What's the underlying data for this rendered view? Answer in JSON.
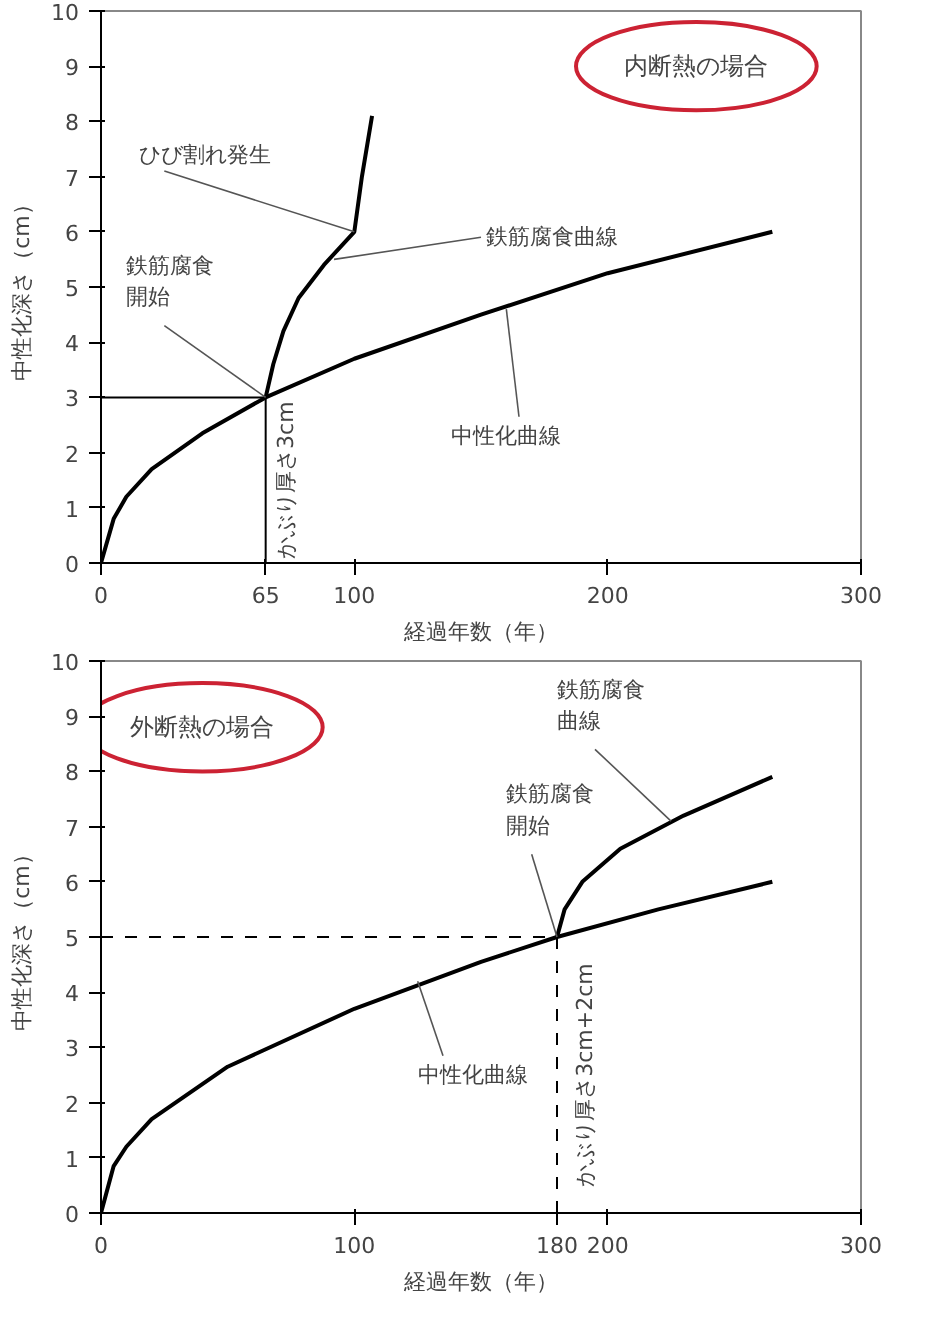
{
  "chart_data": [
    {
      "type": "line",
      "xlabel": "経過年数（年）",
      "ylabel": "中性化深さ（cm）",
      "xlim": [
        0,
        300
      ],
      "ylim": [
        0,
        10
      ],
      "xticks": [
        0,
        65,
        100,
        200,
        300
      ],
      "yticks": [
        0,
        1,
        2,
        3,
        4,
        5,
        6,
        7,
        8,
        9,
        10
      ],
      "grid": false,
      "series": [
        {
          "color": "#000000",
          "x": [
            0,
            5,
            10,
            20,
            40,
            65,
            100,
            150,
            200,
            265
          ],
          "values": [
            0,
            0.8,
            1.2,
            1.7,
            2.35,
            3,
            3.7,
            4.5,
            5.25,
            6
          ]
        },
        {
          "color": "#000000",
          "x": [
            65,
            68,
            72,
            78,
            88,
            100,
            103,
            107
          ],
          "values": [
            3,
            3.6,
            4.2,
            4.8,
            5.4,
            6,
            7,
            8.1
          ]
        }
      ],
      "ref_lines": [
        {
          "axis": "y",
          "value": 3,
          "line_style": "solid"
        },
        {
          "axis": "x",
          "value": 65,
          "line_style": "solid"
        }
      ],
      "annotations": [
        "内断熱の場合",
        {
          "text": "ひび割れ発生",
          "x": 100,
          "y": 6
        },
        {
          "text": "鉄筋腐食曲線",
          "x": 92,
          "y": 5.5
        },
        {
          "text": "鉄筋腐食開始",
          "x": 65,
          "y": 3
        },
        {
          "text": "中性化曲線",
          "x": 160,
          "y": 4.6
        },
        {
          "text": "かぶり厚さ3cm",
          "x": 65,
          "y": 1.5
        }
      ]
    },
    {
      "type": "line",
      "xlabel": "経過年数（年）",
      "ylabel": "中性化深さ（cm）",
      "xlim": [
        0,
        300
      ],
      "ylim": [
        0,
        10
      ],
      "xticks": [
        0,
        100,
        180,
        200,
        300
      ],
      "yticks": [
        0,
        1,
        2,
        3,
        4,
        5,
        6,
        7,
        8,
        9,
        10
      ],
      "grid": false,
      "series": [
        {
          "color": "#000000",
          "x": [
            0,
            5,
            10,
            20,
            50,
            100,
            150,
            180,
            220,
            265
          ],
          "values": [
            0,
            0.85,
            1.2,
            1.7,
            2.65,
            3.7,
            4.55,
            5,
            5.5,
            6
          ]
        },
        {
          "color": "#000000",
          "x": [
            180,
            183,
            190,
            205,
            230,
            265
          ],
          "values": [
            5,
            5.5,
            6,
            6.6,
            7.2,
            7.9
          ]
        }
      ],
      "ref_lines": [
        {
          "axis": "y",
          "value": 5,
          "line_style": "dashed"
        },
        {
          "axis": "x",
          "value": 180,
          "line_style": "dashed"
        }
      ],
      "annotations": [
        "外断熱の場合",
        {
          "text": "鉄筋腐食曲線",
          "x": 225,
          "y": 7.1
        },
        {
          "text": "鉄筋腐食開始",
          "x": 180,
          "y": 5
        },
        {
          "text": "中性化曲線",
          "x": 125,
          "y": 4.2
        },
        {
          "text": "かぶり厚さ3cm+2cm",
          "x": 183,
          "y": 2.5
        }
      ]
    }
  ]
}
